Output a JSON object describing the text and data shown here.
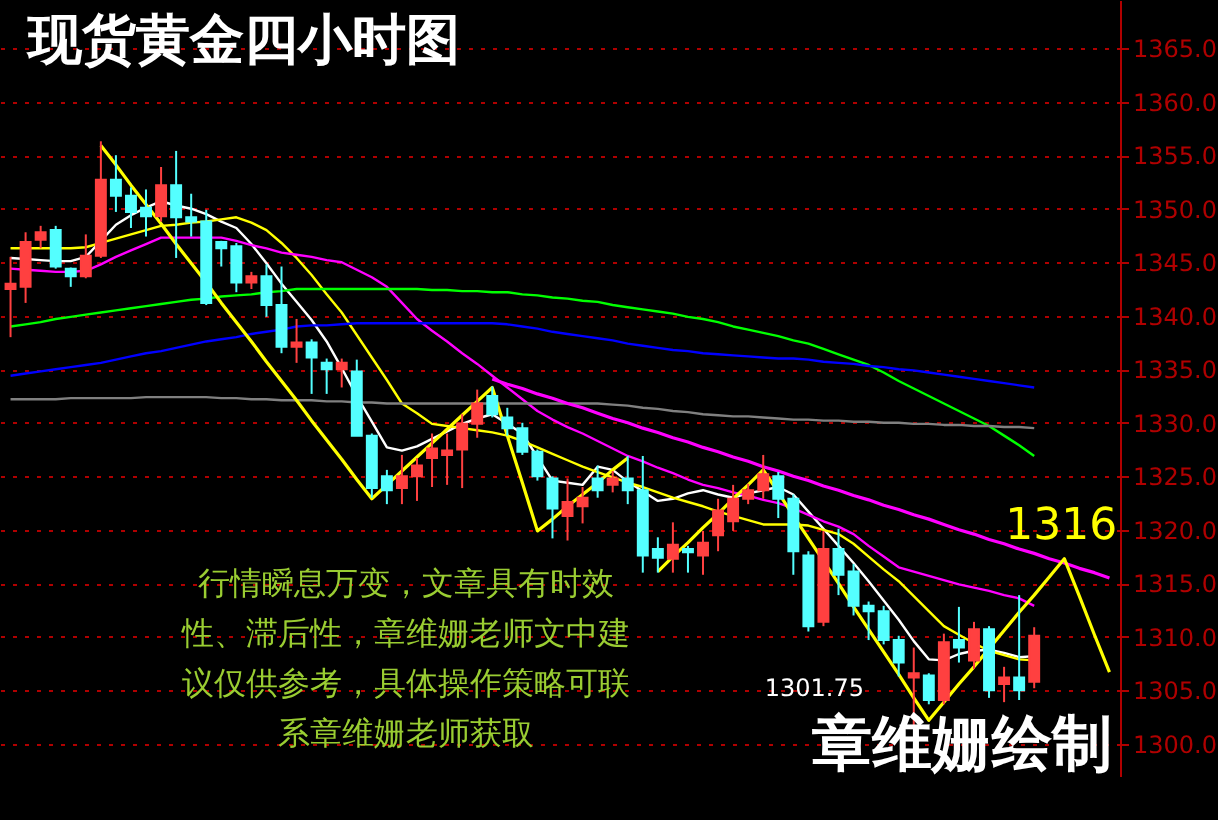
{
  "chart_data": {
    "type": "candlestick",
    "title": "现货黄金四小时图",
    "categories": [
      null,
      null,
      null,
      null,
      null,
      null,
      null,
      null,
      null,
      null,
      null,
      null,
      null,
      null,
      null,
      null,
      null,
      null,
      null,
      null,
      null,
      null,
      null,
      null,
      null,
      null,
      null,
      null,
      null,
      null,
      null,
      null,
      null,
      null,
      null,
      null,
      null,
      null,
      null,
      null,
      null,
      null,
      null,
      null,
      null,
      null,
      null,
      null,
      null,
      null,
      null,
      null,
      null,
      null,
      null,
      null,
      null,
      null,
      null,
      null,
      null,
      null,
      null,
      null,
      null,
      null,
      null,
      null,
      null,
      null,
      null,
      null,
      null,
      null
    ],
    "ohlc": [
      [
        1342.5,
        1345.5,
        1338,
        1343
      ],
      [
        1342.7,
        1347.8,
        1341.2,
        1346.9
      ],
      [
        1347.1,
        1348.4,
        1346.3,
        1347.8
      ],
      [
        1348,
        1348.4,
        1344.4,
        1344.6
      ],
      [
        1344.4,
        1344.5,
        1342.7,
        1343.7
      ],
      [
        1343.7,
        1347.6,
        1343.5,
        1345.6
      ],
      [
        1345.6,
        1356.3,
        1345.4,
        1352.7
      ],
      [
        1352.7,
        1355,
        1349.7,
        1351.2
      ],
      [
        1351.2,
        1352,
        1348.2,
        1349.7
      ],
      [
        1350.1,
        1351.8,
        1347.4,
        1349.3
      ],
      [
        1349.3,
        1353.9,
        1348.8,
        1352.2
      ],
      [
        1352.2,
        1355.4,
        1345.4,
        1349.2
      ],
      [
        1349.2,
        1351.4,
        1347.4,
        1348.8
      ],
      [
        1348.8,
        1349.9,
        1341,
        1341.2
      ],
      [
        1346.9,
        1347,
        1344.6,
        1346.3
      ],
      [
        1346.5,
        1346.8,
        1342.2,
        1343.1
      ],
      [
        1343.1,
        1344.1,
        1342.5,
        1343.7
      ],
      [
        1343.7,
        1344.8,
        1339.9,
        1341
      ],
      [
        1341,
        1344.6,
        1336.5,
        1337.1
      ],
      [
        1337.1,
        1339.7,
        1335.6,
        1337.5
      ],
      [
        1337.5,
        1337.8,
        1332.7,
        1336.1
      ],
      [
        1335.6,
        1336,
        1332.7,
        1335
      ],
      [
        1335,
        1336,
        1333.3,
        1335.6
      ],
      [
        1334.8,
        1335.9,
        1328.8,
        1328.8
      ],
      [
        1328.8,
        1329,
        1323,
        1323.9
      ],
      [
        1325,
        1325.6,
        1322.4,
        1323.7
      ],
      [
        1323.9,
        1327,
        1322.4,
        1325
      ],
      [
        1325,
        1326.7,
        1322.7,
        1326
      ],
      [
        1326.7,
        1329,
        1324,
        1327.6
      ],
      [
        1327,
        1329,
        1324.2,
        1327.4
      ],
      [
        1327.5,
        1330.8,
        1323.9,
        1329.9
      ],
      [
        1329.9,
        1333.1,
        1328.6,
        1331.8
      ],
      [
        1332.5,
        1333.4,
        1330.5,
        1330.8
      ],
      [
        1330.5,
        1331.4,
        1328.8,
        1329.5
      ],
      [
        1329.5,
        1330,
        1327,
        1327.3
      ],
      [
        1327.3,
        1327.5,
        1324.6,
        1325
      ],
      [
        1324.8,
        1325,
        1319.2,
        1322
      ],
      [
        1321.3,
        1324.8,
        1319,
        1322.6
      ],
      [
        1322.2,
        1324,
        1320.6,
        1323
      ],
      [
        1324.8,
        1326,
        1323,
        1323.7
      ],
      [
        1324.2,
        1325.5,
        1323.5,
        1324.8
      ],
      [
        1324.8,
        1326.9,
        1322.4,
        1323.7
      ],
      [
        1323.7,
        1326.9,
        1316,
        1317.6
      ],
      [
        1318.2,
        1319.3,
        1316,
        1317.4
      ],
      [
        1317.3,
        1320.7,
        1316,
        1318.6
      ],
      [
        1318.2,
        1318.5,
        1316,
        1317.9
      ],
      [
        1317.6,
        1319.9,
        1315.8,
        1318.8
      ],
      [
        1319.5,
        1322.9,
        1318,
        1321.8
      ],
      [
        1320.8,
        1324.2,
        1319.9,
        1322.9
      ],
      [
        1322.9,
        1324.3,
        1322.4,
        1323.7
      ],
      [
        1323.7,
        1327,
        1322.9,
        1325.2
      ],
      [
        1325,
        1325.4,
        1321.1,
        1322.9
      ],
      [
        1322.9,
        1323.3,
        1315.8,
        1318
      ],
      [
        1317.6,
        1318,
        1310.5,
        1311
      ],
      [
        1311.4,
        1319.9,
        1311,
        1318.2
      ],
      [
        1318.2,
        1320.1,
        1313.9,
        1315.8
      ],
      [
        1316.1,
        1316.8,
        1312,
        1312.9
      ],
      [
        1312.9,
        1313.3,
        1309.7,
        1312.4
      ],
      [
        1312.4,
        1312.9,
        1309.3,
        1309.7
      ],
      [
        1309.7,
        1310.1,
        1306.3,
        1307.6
      ],
      [
        1306.2,
        1309,
        1301.75,
        1306.6
      ],
      [
        1306.4,
        1306.6,
        1303.7,
        1304.1
      ],
      [
        1304.1,
        1310.3,
        1303.7,
        1309.5
      ],
      [
        1309.7,
        1312.8,
        1307.6,
        1309
      ],
      [
        1307.8,
        1311.4,
        1307,
        1310.7
      ],
      [
        1310.7,
        1311,
        1304.3,
        1305
      ],
      [
        1305.6,
        1307.2,
        1303.9,
        1306.2
      ],
      [
        1306.2,
        1313.9,
        1304.1,
        1305
      ],
      [
        1305.8,
        1310.9,
        1305.2,
        1310.1
      ],
      null,
      null,
      null,
      null,
      null
    ],
    "series": [
      {
        "type": "line",
        "color": "#ffffff",
        "values": [
          1345.4,
          1345.3,
          1345.2,
          1345.1,
          1345.1,
          1345.5,
          1347,
          1348.5,
          1349.4,
          1350.1,
          1350.7,
          1350.3,
          1350,
          1349.5,
          1348.8,
          1348.2,
          1346.7,
          1344.9,
          1343,
          1341.3,
          1339.6,
          1337.6,
          1335.1,
          1332.5,
          1330.1,
          1327.7,
          1327.4,
          1327.8,
          1328.5,
          1329.2,
          1329.9,
          1330.4,
          1330.8,
          1329.9,
          1329,
          1326.8,
          1324.6,
          1324.4,
          1324.2,
          1325.9,
          1325.6,
          1324.5,
          1323.6,
          1322.7,
          1322.9,
          1323.4,
          1323.7,
          1323.3,
          1323,
          1323.4,
          1323.7,
          1324,
          1323.3,
          1321.7,
          1320.1,
          1318.5,
          1316.9,
          1315.2,
          1313.4,
          1311.6,
          1309.6,
          1307.9,
          1307.8,
          1308.4,
          1308.7,
          1308.8,
          1308.5,
          1308.1,
          1308.2,
          null,
          null,
          null,
          null,
          null
        ]
      },
      {
        "type": "line",
        "color": "#ffff00",
        "values": [
          1346.3,
          1346.3,
          1346.3,
          1346.3,
          1346.3,
          1346.4,
          1346.8,
          1347.2,
          1347.6,
          1348,
          1348.4,
          1348.5,
          1348.7,
          1348.8,
          1349,
          1349.2,
          1348.7,
          1348,
          1346.8,
          1345.4,
          1343.8,
          1342,
          1340.3,
          1338.2,
          1336.1,
          1334,
          1331.8,
          1330.9,
          1329.9,
          1329.7,
          1329.5,
          1329.3,
          1329.1,
          1328.8,
          1328.3,
          1327.7,
          1327.1,
          1326.5,
          1325.9,
          1325.4,
          1324.9,
          1324.4,
          1324,
          1323.5,
          1323,
          1322.6,
          1322.2,
          1321.7,
          1321.3,
          1320.9,
          1320.5,
          1320.5,
          1320.5,
          1320.4,
          1320,
          1319.6,
          1318.7,
          1317.5,
          1316.3,
          1315.2,
          1313.8,
          1312.4,
          1311,
          1310.2,
          1309.4,
          1308.7,
          1308.3,
          1307.9,
          1307.8,
          null,
          null,
          null,
          null,
          null
        ]
      },
      {
        "type": "line",
        "color": "#ff00ff",
        "values": [
          1344.4,
          1344.3,
          1344.2,
          1344.1,
          1344.1,
          1344.2,
          1344.8,
          1345.5,
          1346.1,
          1346.7,
          1347.3,
          1347.3,
          1347.3,
          1347.3,
          1347.3,
          1347,
          1346.6,
          1346.3,
          1345.9,
          1345.7,
          1345.5,
          1345.2,
          1345,
          1344.3,
          1343.6,
          1342.7,
          1341.2,
          1339.7,
          1338.6,
          1337.6,
          1336.5,
          1335.5,
          1334.4,
          1333.3,
          1332.2,
          1331.1,
          1330.3,
          1329.6,
          1329,
          1328.3,
          1327.6,
          1326.9,
          1326.4,
          1325.8,
          1325.3,
          1324.7,
          1324.2,
          1323.9,
          1323.5,
          1323.2,
          1322.8,
          1322.5,
          1322,
          1321.4,
          1320.8,
          1320.3,
          1319.6,
          1318.5,
          1317.5,
          1316.5,
          1316.1,
          1315.7,
          1315.3,
          1314.9,
          1314.6,
          1314.3,
          1313.9,
          1313.6,
          1312.9,
          null,
          null,
          null,
          null,
          null
        ]
      },
      {
        "type": "line",
        "color": "#00ff00",
        "values": [
          1339,
          1339.2,
          1339.4,
          1339.7,
          1339.9,
          1340.1,
          1340.3,
          1340.5,
          1340.7,
          1340.9,
          1341.1,
          1341.3,
          1341.5,
          1341.6,
          1341.8,
          1341.9,
          1342,
          1342.2,
          1342.3,
          1342.5,
          1342.5,
          1342.5,
          1342.5,
          1342.5,
          1342.5,
          1342.5,
          1342.5,
          1342.5,
          1342.4,
          1342.4,
          1342.3,
          1342.3,
          1342.2,
          1342.2,
          1342,
          1341.9,
          1341.7,
          1341.6,
          1341.4,
          1341.3,
          1341,
          1340.8,
          1340.6,
          1340.4,
          1340.2,
          1339.9,
          1339.7,
          1339.4,
          1339,
          1338.7,
          1338.4,
          1338.1,
          1337.7,
          1337.4,
          1336.9,
          1336.4,
          1335.9,
          1335.4,
          1334.7,
          1333.9,
          1333.2,
          1332.5,
          1331.8,
          1331.1,
          1330.4,
          1329.7,
          1328.8,
          1327.9,
          1326.9,
          null,
          null,
          null,
          null,
          null
        ]
      },
      {
        "type": "line",
        "color": "#0000ff",
        "values": [
          1334.4,
          1334.6,
          1334.8,
          1335,
          1335.2,
          1335.4,
          1335.6,
          1335.9,
          1336.2,
          1336.5,
          1336.7,
          1337,
          1337.3,
          1337.6,
          1337.8,
          1338,
          1338.3,
          1338.5,
          1338.7,
          1339,
          1339.1,
          1339.1,
          1339.2,
          1339.3,
          1339.3,
          1339.3,
          1339.3,
          1339.3,
          1339.3,
          1339.3,
          1339.3,
          1339.3,
          1339.3,
          1339.2,
          1339,
          1338.8,
          1338.5,
          1338.3,
          1338.1,
          1337.9,
          1337.7,
          1337.4,
          1337.2,
          1337,
          1336.8,
          1336.7,
          1336.5,
          1336.4,
          1336.3,
          1336.2,
          1336.1,
          1336,
          1336,
          1335.9,
          1335.7,
          1335.6,
          1335.5,
          1335.3,
          1335.2,
          1335,
          1334.9,
          1334.7,
          1334.5,
          1334.3,
          1334.1,
          1333.9,
          1333.7,
          1333.5,
          1333.3,
          null,
          null,
          null,
          null,
          null
        ]
      },
      {
        "type": "line",
        "color": "#808080",
        "values": [
          1332.2,
          1332.2,
          1332.2,
          1332.2,
          1332.3,
          1332.3,
          1332.3,
          1332.3,
          1332.3,
          1332.4,
          1332.4,
          1332.4,
          1332.4,
          1332.4,
          1332.3,
          1332.3,
          1332.2,
          1332.2,
          1332.1,
          1332.1,
          1332.1,
          1332,
          1332,
          1331.9,
          1331.9,
          1331.8,
          1331.8,
          1331.8,
          1331.8,
          1331.8,
          1331.8,
          1331.8,
          1331.8,
          1331.8,
          1331.8,
          1331.8,
          1331.8,
          1331.8,
          1331.8,
          1331.8,
          1331.7,
          1331.6,
          1331.4,
          1331.3,
          1331.1,
          1331,
          1330.8,
          1330.7,
          1330.6,
          1330.6,
          1330.5,
          1330.4,
          1330.3,
          1330.3,
          1330.2,
          1330.2,
          1330.1,
          1330.1,
          1330,
          1330,
          1329.9,
          1329.9,
          1329.8,
          1329.8,
          1329.7,
          1329.7,
          1329.6,
          1329.6,
          1329.5,
          null,
          null,
          null,
          null,
          null
        ]
      },
      {
        "type": "line",
        "color": "#ff00ff",
        "values": [
          null,
          null,
          null,
          null,
          null,
          null,
          null,
          null,
          null,
          null,
          null,
          null,
          null,
          null,
          null,
          null,
          null,
          null,
          null,
          null,
          null,
          null,
          null,
          null,
          null,
          null,
          null,
          null,
          null,
          null,
          null,
          null,
          1334.1,
          1333.6,
          1333.2,
          1332.7,
          1332.3,
          1331.8,
          1331.4,
          1330.9,
          1330.4,
          1330,
          1329.5,
          1329.1,
          1328.6,
          1328.2,
          1327.7,
          1327.3,
          1326.8,
          1326.4,
          1325.9,
          1325.5,
          1325,
          1324.6,
          1324.1,
          1323.7,
          1323.2,
          1322.8,
          1322.3,
          1321.9,
          1321.4,
          1321,
          1320.5,
          1320,
          1319.6,
          1319.1,
          1318.7,
          1318.2,
          1317.8,
          1317.3,
          1316.9,
          1316.4,
          1316,
          1315.5
        ]
      },
      {
        "type": "line",
        "color": "#ffff00",
        "values": [
          null,
          null,
          null,
          null,
          null,
          null,
          1355.9,
          1354.1,
          1352.2,
          1350.4,
          1348.6,
          1346.7,
          1344.9,
          1343.1,
          1341.2,
          1339.4,
          1337.6,
          1335.7,
          1333.9,
          1332.1,
          1330.2,
          1328.4,
          1326.6,
          1324.7,
          1322.9,
          1324.2,
          1325.5,
          1326.8,
          1328.1,
          1329.4,
          1330.7,
          1332,
          1333.3,
          1328.8,
          1324.4,
          1319.9,
          1321,
          1322.2,
          1323.3,
          1324.4,
          1325.6,
          1326.7,
          null,
          1316.1,
          1317.5,
          1318.8,
          1320.2,
          1321.5,
          1322.9,
          1324.2,
          1325.6,
          1323.5,
          1321.3,
          1319.2,
          1317.1,
          1315,
          1312.8,
          1310.7,
          1308.6,
          1306.5,
          1304.3,
          1302.2,
          1303.9,
          1305.6,
          1307.2,
          1308.9,
          1310.6,
          1312.3,
          1313.9,
          1315.6,
          1317.3,
          1313.8,
          1310.2,
          1306.7
        ]
      }
    ],
    "ylim": [
      1297,
      1369.5
    ],
    "yticks": [
      {
        "value": 1300,
        "label": "1300.0"
      },
      {
        "value": 1305,
        "label": "1305.0"
      },
      {
        "value": 1310,
        "label": "1310.0"
      },
      {
        "value": 1315,
        "label": "1315.0"
      },
      {
        "value": 1320,
        "label": "1320.0"
      },
      {
        "value": 1325,
        "label": "1325.0"
      },
      {
        "value": 1330,
        "label": "1330.0"
      },
      {
        "value": 1335,
        "label": "1335.0"
      },
      {
        "value": 1340,
        "label": "1340.0"
      },
      {
        "value": 1345,
        "label": "1345.0"
      },
      {
        "value": 1350,
        "label": "1350.0"
      },
      {
        "value": 1355,
        "label": "1355.0"
      },
      {
        "value": 1360,
        "label": "1360.0"
      },
      {
        "value": 1365,
        "label": "1365.0"
      }
    ],
    "tick_labels": "y",
    "grid": "y",
    "annotations": [
      "行情瞬息万变，文章具有时效性、滞后性，章维姗老师文中建议仅供参考，具体操作策略可联系章维姗老师获取",
      "章维姗绘制",
      "1301.75",
      {
        "text": "1316",
        "y": 1316
      }
    ]
  }
}
